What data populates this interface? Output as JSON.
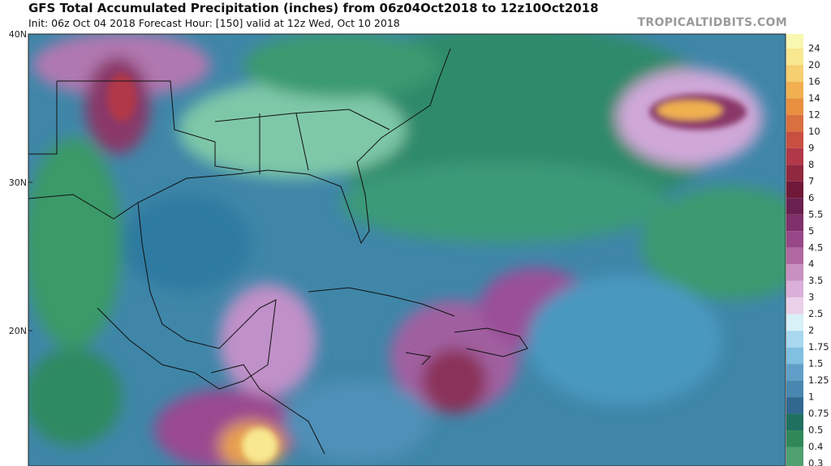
{
  "header": {
    "title": "GFS Total Accumulated Precipitation (inches) from 06z04Oct2018 to 12z10Oct2018",
    "subtitle": "Init: 06z Oct 04 2018   Forecast Hour: [150]   valid at 12z Wed, Oct 10 2018",
    "watermark": "TROPICALTIDBITS.COM"
  },
  "map": {
    "latitude_labels": [
      "40N",
      "30N",
      "20N"
    ]
  },
  "colorbar": {
    "labels": [
      24,
      20,
      16,
      14,
      12,
      10,
      9,
      8,
      7,
      6,
      5.5,
      5,
      4.5,
      4,
      3.5,
      3,
      2.5,
      2,
      1.75,
      1.5,
      1.25,
      1,
      0.75,
      0.5,
      0.4,
      0.3
    ],
    "colors": [
      "#f8f8b0",
      "#f8e890",
      "#f5cf70",
      "#f0b050",
      "#e89040",
      "#d87040",
      "#c85040",
      "#b03848",
      "#902840",
      "#701838",
      "#6a2050",
      "#80306a",
      "#984888",
      "#b068a0",
      "#c890c0",
      "#dab0d8",
      "#ead0e8",
      "#d8f0f8",
      "#a8d8f0",
      "#80c0e0",
      "#60a0c8",
      "#4888b0",
      "#306890",
      "#207060",
      "#308858",
      "#50a070"
    ]
  }
}
